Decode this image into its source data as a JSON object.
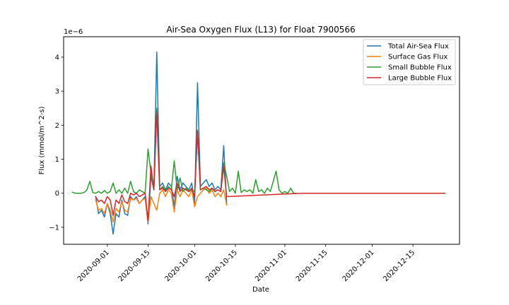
{
  "chart_data": {
    "type": "line",
    "title": "Air-Sea Oxygen Flux (L13) for Float 7900566",
    "xlabel": "Date",
    "ylabel": "Flux (mmol/m^2-s)",
    "y_multiplier": "1e−6",
    "xlim": [
      "2020-08-17",
      "2020-12-31"
    ],
    "ylim": [
      -1.5e-06,
      4.6e-06
    ],
    "x_ticks": [
      "2020-09-01",
      "2020-09-15",
      "2020-10-01",
      "2020-10-15",
      "2020-11-01",
      "2020-11-15",
      "2020-12-01",
      "2020-12-15"
    ],
    "y_ticks": [
      -1e-06,
      0,
      1e-06,
      2e-06,
      3e-06,
      4e-06
    ],
    "y_tick_labels": [
      "−1",
      "0",
      "1",
      "2",
      "3",
      "4"
    ],
    "grid": false,
    "legend_position": "top-right",
    "series": [
      {
        "name": "Total Air-Sea Flux",
        "color": "#1f77b4",
        "points": [
          [
            "2020-08-28",
            -1e-07
          ],
          [
            "2020-08-29",
            -6e-07
          ],
          [
            "2020-08-30",
            -5e-07
          ],
          [
            "2020-08-31",
            -7e-07
          ],
          [
            "2020-09-01",
            -3e-07
          ],
          [
            "2020-09-02",
            -6e-07
          ],
          [
            "2020-09-03",
            -1.2e-06
          ],
          [
            "2020-09-04",
            -6e-07
          ],
          [
            "2020-09-05",
            -7e-07
          ],
          [
            "2020-09-06",
            -2e-07
          ],
          [
            "2020-09-07",
            -6e-07
          ],
          [
            "2020-09-08",
            -6.5e-07
          ],
          [
            "2020-09-09",
            -1e-07
          ],
          [
            "2020-09-10",
            -2e-07
          ],
          [
            "2020-09-11",
            -1e-07
          ],
          [
            "2020-09-12",
            -3e-07
          ],
          [
            "2020-09-13",
            -2e-07
          ],
          [
            "2020-09-14",
            -1e-07
          ],
          [
            "2020-09-15",
            -9e-07
          ],
          [
            "2020-09-16",
            5e-07
          ],
          [
            "2020-09-17",
            1e-07
          ],
          [
            "2020-09-18",
            4.15e-06
          ],
          [
            "2020-09-19",
            2e-07
          ],
          [
            "2020-09-20",
            3e-07
          ],
          [
            "2020-09-21",
            1e-07
          ],
          [
            "2020-09-22",
            3e-07
          ],
          [
            "2020-09-23",
            2e-07
          ],
          [
            "2020-09-24",
            -4e-07
          ],
          [
            "2020-09-25",
            5e-07
          ],
          [
            "2020-09-26",
            1e-07
          ],
          [
            "2020-09-27",
            3e-07
          ],
          [
            "2020-09-28",
            2e-07
          ],
          [
            "2020-09-29",
            1e-07
          ],
          [
            "2020-09-30",
            3e-07
          ],
          [
            "2020-10-01",
            -3e-07
          ],
          [
            "2020-10-02",
            3.25e-06
          ],
          [
            "2020-10-03",
            2e-07
          ],
          [
            "2020-10-04",
            3e-07
          ],
          [
            "2020-10-05",
            4e-07
          ],
          [
            "2020-10-06",
            2e-07
          ],
          [
            "2020-10-07",
            3e-07
          ],
          [
            "2020-10-08",
            1e-07
          ],
          [
            "2020-10-09",
            2e-07
          ],
          [
            "2020-10-10",
            1e-07
          ],
          [
            "2020-10-11",
            1.4e-06
          ],
          [
            "2020-10-12",
            -3e-07
          ]
        ]
      },
      {
        "name": "Surface Gas Flux",
        "color": "#ff7f0e",
        "points": [
          [
            "2020-08-28",
            -2e-07
          ],
          [
            "2020-08-29",
            -5e-07
          ],
          [
            "2020-08-30",
            -4.5e-07
          ],
          [
            "2020-08-31",
            -6e-07
          ],
          [
            "2020-09-01",
            -3e-07
          ],
          [
            "2020-09-02",
            -5e-07
          ],
          [
            "2020-09-03",
            -8.5e-07
          ],
          [
            "2020-09-04",
            -4.5e-07
          ],
          [
            "2020-09-05",
            -5.5e-07
          ],
          [
            "2020-09-06",
            -2.5e-07
          ],
          [
            "2020-09-07",
            -5e-07
          ],
          [
            "2020-09-08",
            -5.5e-07
          ],
          [
            "2020-09-09",
            -1.5e-07
          ],
          [
            "2020-09-10",
            -2e-07
          ],
          [
            "2020-09-11",
            -1.5e-07
          ],
          [
            "2020-09-12",
            -3e-07
          ],
          [
            "2020-09-13",
            -2e-07
          ],
          [
            "2020-09-14",
            -1.5e-07
          ],
          [
            "2020-09-15",
            -8.5e-07
          ],
          [
            "2020-09-16",
            -1e-07
          ],
          [
            "2020-09-17",
            -3e-07
          ],
          [
            "2020-09-18",
            -5e-07
          ],
          [
            "2020-09-19",
            0.0
          ],
          [
            "2020-09-20",
            1e-07
          ],
          [
            "2020-09-21",
            -1e-07
          ],
          [
            "2020-09-22",
            1e-07
          ],
          [
            "2020-09-23",
            0.0
          ],
          [
            "2020-09-24",
            -5.5e-07
          ],
          [
            "2020-09-25",
            1e-07
          ],
          [
            "2020-09-26",
            -1e-07
          ],
          [
            "2020-09-27",
            1e-07
          ],
          [
            "2020-09-28",
            0.0
          ],
          [
            "2020-09-29",
            -1e-07
          ],
          [
            "2020-09-30",
            1e-07
          ],
          [
            "2020-10-01",
            -4e-07
          ],
          [
            "2020-10-02",
            -1e-07
          ],
          [
            "2020-10-03",
            0.0
          ],
          [
            "2020-10-04",
            1e-07
          ],
          [
            "2020-10-05",
            1.5e-07
          ],
          [
            "2020-10-06",
            0.0
          ],
          [
            "2020-10-07",
            1e-07
          ],
          [
            "2020-10-08",
            -1e-07
          ],
          [
            "2020-10-09",
            0.0
          ],
          [
            "2020-10-10",
            -1e-07
          ],
          [
            "2020-10-11",
            1e-07
          ],
          [
            "2020-10-12",
            -3.5e-07
          ]
        ]
      },
      {
        "name": "Small Bubble Flux",
        "color": "#2ca02c",
        "points": [
          [
            "2020-08-20",
            3e-08
          ],
          [
            "2020-08-21",
            0.0
          ],
          [
            "2020-08-22",
            0.0
          ],
          [
            "2020-08-23",
            0.0
          ],
          [
            "2020-08-24",
            2e-08
          ],
          [
            "2020-08-25",
            1e-07
          ],
          [
            "2020-08-26",
            3.5e-07
          ],
          [
            "2020-08-27",
            2e-08
          ],
          [
            "2020-08-28",
            0.0
          ],
          [
            "2020-08-29",
            5e-08
          ],
          [
            "2020-08-30",
            0.0
          ],
          [
            "2020-08-31",
            8e-08
          ],
          [
            "2020-09-01",
            0.0
          ],
          [
            "2020-09-02",
            5e-08
          ],
          [
            "2020-09-03",
            3e-07
          ],
          [
            "2020-09-04",
            0.0
          ],
          [
            "2020-09-05",
            1e-07
          ],
          [
            "2020-09-06",
            0.0
          ],
          [
            "2020-09-07",
            1.5e-07
          ],
          [
            "2020-09-08",
            0.0
          ],
          [
            "2020-09-09",
            3.5e-07
          ],
          [
            "2020-09-10",
            5e-08
          ],
          [
            "2020-09-11",
            0.0
          ],
          [
            "2020-09-12",
            1e-07
          ],
          [
            "2020-09-13",
            5e-08
          ],
          [
            "2020-09-14",
            0.0
          ],
          [
            "2020-09-15",
            1.3e-06
          ],
          [
            "2020-09-16",
            6e-07
          ],
          [
            "2020-09-17",
            1e-07
          ],
          [
            "2020-09-18",
            2.5e-06
          ],
          [
            "2020-09-19",
            1e-07
          ],
          [
            "2020-09-20",
            2e-07
          ],
          [
            "2020-09-21",
            5e-08
          ],
          [
            "2020-09-22",
            2e-07
          ],
          [
            "2020-09-23",
            1e-07
          ],
          [
            "2020-09-24",
            9.5e-07
          ],
          [
            "2020-09-25",
            1e-07
          ],
          [
            "2020-09-26",
            4.5e-07
          ],
          [
            "2020-09-27",
            5e-08
          ],
          [
            "2020-09-28",
            1.5e-07
          ],
          [
            "2020-09-29",
            5e-08
          ],
          [
            "2020-09-30",
            1e-07
          ],
          [
            "2020-10-01",
            5e-08
          ],
          [
            "2020-10-02",
            1.8e-06
          ],
          [
            "2020-10-03",
            1e-07
          ],
          [
            "2020-10-04",
            1.5e-07
          ],
          [
            "2020-10-05",
            1e-07
          ],
          [
            "2020-10-06",
            5e-08
          ],
          [
            "2020-10-07",
            1.5e-07
          ],
          [
            "2020-10-08",
            5e-08
          ],
          [
            "2020-10-09",
            1e-07
          ],
          [
            "2020-10-10",
            5e-08
          ],
          [
            "2020-10-11",
            9e-07
          ],
          [
            "2020-10-12",
            5e-07
          ],
          [
            "2020-10-13",
            5e-08
          ],
          [
            "2020-10-14",
            1.5e-07
          ],
          [
            "2020-10-15",
            0.0
          ],
          [
            "2020-10-16",
            6.5e-07
          ],
          [
            "2020-10-17",
            2e-08
          ],
          [
            "2020-10-18",
            1e-07
          ],
          [
            "2020-10-19",
            5e-08
          ],
          [
            "2020-10-20",
            1e-07
          ],
          [
            "2020-10-21",
            0.0
          ],
          [
            "2020-10-22",
            4e-07
          ],
          [
            "2020-10-23",
            5e-08
          ],
          [
            "2020-10-24",
            1e-07
          ],
          [
            "2020-10-25",
            0.0
          ],
          [
            "2020-10-26",
            1.5e-07
          ],
          [
            "2020-10-27",
            5e-08
          ],
          [
            "2020-10-28",
            3.5e-07
          ],
          [
            "2020-10-29",
            6.5e-07
          ],
          [
            "2020-10-30",
            1e-07
          ],
          [
            "2020-10-31",
            0.0
          ],
          [
            "2020-11-01",
            5e-08
          ],
          [
            "2020-11-02",
            0.0
          ],
          [
            "2020-11-03",
            1.5e-07
          ],
          [
            "2020-11-04",
            0.0
          ],
          [
            "2020-11-05",
            0.0
          ]
        ]
      },
      {
        "name": "Large Bubble Flux",
        "color": "#d62728",
        "points": [
          [
            "2020-08-28",
            -1e-07
          ],
          [
            "2020-08-29",
            -2.5e-07
          ],
          [
            "2020-08-30",
            -2e-07
          ],
          [
            "2020-08-31",
            -3e-07
          ],
          [
            "2020-09-01",
            -1e-07
          ],
          [
            "2020-09-02",
            -2e-07
          ],
          [
            "2020-09-03",
            -6.5e-07
          ],
          [
            "2020-09-04",
            -2e-07
          ],
          [
            "2020-09-05",
            -3e-07
          ],
          [
            "2020-09-06",
            -5e-08
          ],
          [
            "2020-09-07",
            -2.5e-07
          ],
          [
            "2020-09-08",
            -3e-07
          ],
          [
            "2020-09-09",
            0.0
          ],
          [
            "2020-09-10",
            -5e-08
          ],
          [
            "2020-09-11",
            0.0
          ],
          [
            "2020-09-12",
            -1e-07
          ],
          [
            "2020-09-13",
            -5e-08
          ],
          [
            "2020-09-14",
            0.0
          ],
          [
            "2020-09-15",
            -8e-07
          ],
          [
            "2020-09-16",
            8e-07
          ],
          [
            "2020-09-17",
            1e-07
          ],
          [
            "2020-09-18",
            2.4e-06
          ],
          [
            "2020-09-19",
            1e-07
          ],
          [
            "2020-09-20",
            1.5e-07
          ],
          [
            "2020-09-21",
            5e-08
          ],
          [
            "2020-09-22",
            1.5e-07
          ],
          [
            "2020-09-23",
            1e-07
          ],
          [
            "2020-09-24",
            -1e-07
          ],
          [
            "2020-09-25",
            3e-07
          ],
          [
            "2020-09-26",
            5e-08
          ],
          [
            "2020-09-27",
            1.5e-07
          ],
          [
            "2020-09-28",
            1e-07
          ],
          [
            "2020-09-29",
            5e-08
          ],
          [
            "2020-09-30",
            1.5e-07
          ],
          [
            "2020-10-01",
            -1e-07
          ],
          [
            "2020-10-02",
            1.85e-06
          ],
          [
            "2020-10-03",
            1e-07
          ],
          [
            "2020-10-04",
            1.5e-07
          ],
          [
            "2020-10-05",
            2e-07
          ],
          [
            "2020-10-06",
            1e-07
          ],
          [
            "2020-10-07",
            1.5e-07
          ],
          [
            "2020-10-08",
            5e-08
          ],
          [
            "2020-10-09",
            1e-07
          ],
          [
            "2020-10-10",
            5e-08
          ],
          [
            "2020-10-11",
            8e-07
          ],
          [
            "2020-10-12",
            -1e-07
          ],
          [
            "2020-11-07",
            0.0
          ],
          [
            "2020-11-14",
            0.0
          ],
          [
            "2020-11-28",
            0.0
          ],
          [
            "2020-12-26",
            0.0
          ]
        ]
      }
    ]
  }
}
